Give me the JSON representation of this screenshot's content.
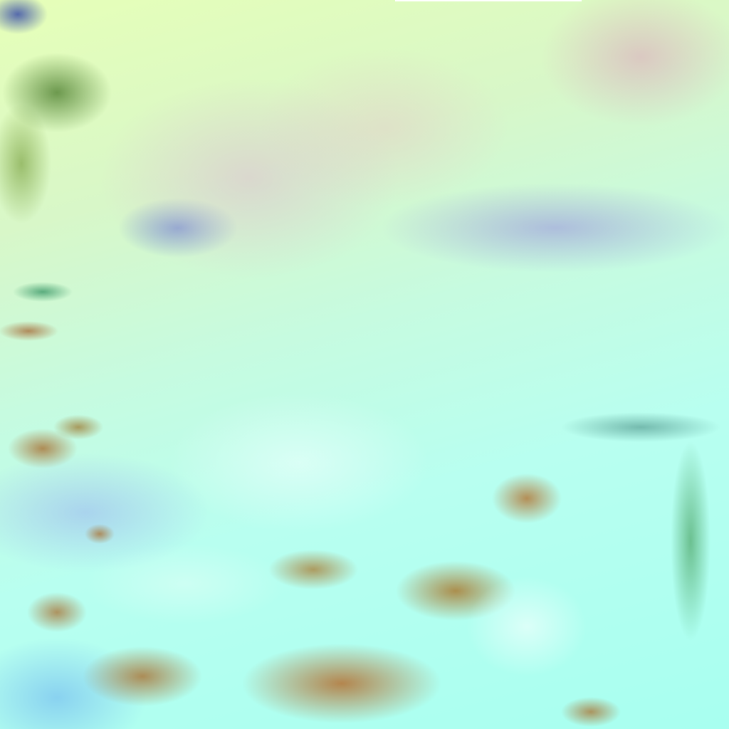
{
  "image": {
    "palette": {
      "cloud_cyan": "#b8fff0",
      "haze_yellow_green": "#e6ffb8",
      "haze_mauve": "#d8bcd2",
      "smoke_blue": "#8c8cdc",
      "land_brown": "#b4824a",
      "vegetation_green": "#4a7a30"
    }
  }
}
